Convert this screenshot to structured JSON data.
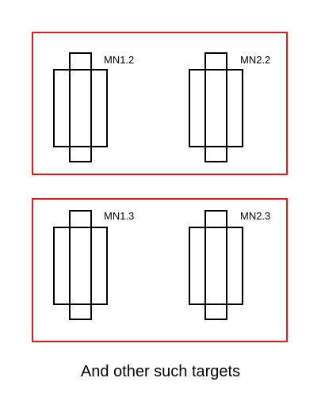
{
  "colors": {
    "frame": "#e21b1b",
    "stroke": "#000000"
  },
  "groups": [
    {
      "transistors": [
        {
          "label": "MN1.2"
        },
        {
          "label": "MN2.2"
        }
      ]
    },
    {
      "transistors": [
        {
          "label": "MN1.3"
        },
        {
          "label": "MN2.3"
        }
      ]
    }
  ],
  "caption": "And other such targets"
}
